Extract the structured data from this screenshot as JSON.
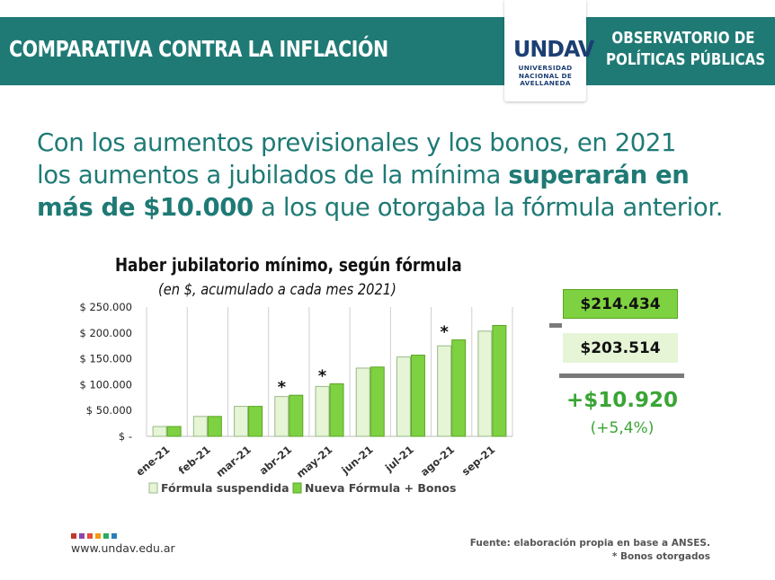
{
  "header": {
    "title": "COMPARATIVA CONTRA LA INFLACIÓN",
    "logo_letters": "UNDAV",
    "logo_line1": "UNIVERSIDAD",
    "logo_line2": "NACIONAL DE",
    "logo_line3": "AVELLANEDA",
    "right_line1": "OBSERVATORIO DE",
    "right_line2": "POLÍTICAS PÚBLICAS",
    "band_color": "#1f7a75",
    "logo_color": "#1c3f73"
  },
  "headline": {
    "line1": "Con los aumentos previsionales y los bonos, en 2021",
    "line2_a": "los aumentos a jubilados de la mínima ",
    "line2_b": "superarán en",
    "line3_a": "más de $10.000",
    "line3_b": " a los que otorgaba la fórmula anterior."
  },
  "chart_data": {
    "type": "bar",
    "title": "Haber jubilatorio mínimo, según fórmula",
    "subtitle": "(en $, acumulado a cada mes 2021)",
    "categories": [
      "ene-21",
      "feb-21",
      "mar-21",
      "abr-21",
      "may-21",
      "jun-21",
      "jul-21",
      "ago-21",
      "sep-21"
    ],
    "series": [
      {
        "name": "Fórmula suspendida",
        "color": "#e5f5d6",
        "values": [
          19000,
          38500,
          58000,
          77000,
          96500,
          132000,
          153500,
          175000,
          203514
        ]
      },
      {
        "name": "Nueva Fórmula + Bonos",
        "color": "#7ed140",
        "values": [
          19000,
          38500,
          58000,
          79500,
          101500,
          134000,
          157000,
          186500,
          214434
        ]
      }
    ],
    "annotations": [
      {
        "category": "abr-21",
        "text": "*"
      },
      {
        "category": "may-21",
        "text": "*"
      },
      {
        "category": "ago-21",
        "text": "*"
      }
    ],
    "ytick_labels": [
      "$ 250.000",
      "$ 200.000",
      "$ 150.000",
      "$ 100.000",
      "$ 50.000",
      "$ -"
    ],
    "ytick_values": [
      250000,
      200000,
      150000,
      100000,
      50000,
      0
    ],
    "ylim": [
      0,
      250000
    ],
    "grid": "vertical",
    "legend": "bottom"
  },
  "comparison": {
    "new_value": "$214.434",
    "old_value": "$203.514",
    "difference": "+$10.920",
    "difference_pct": "(+5,4%)",
    "accent_color": "#3aa535"
  },
  "footer": {
    "url": "www.undav.edu.ar",
    "source": "Fuente: elaboración propia en base a ANSES.",
    "note": "* Bonos otorgados",
    "dot_colors": [
      "#c0392b",
      "#8e44ad",
      "#e74c3c",
      "#f39c12",
      "#27ae60",
      "#2980b9"
    ]
  }
}
